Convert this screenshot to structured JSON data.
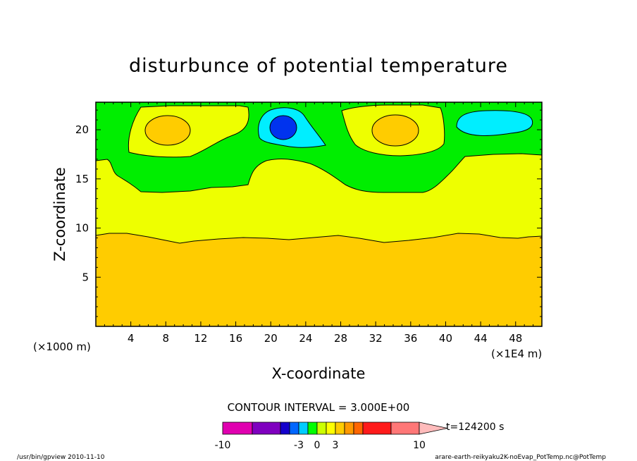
{
  "chart_data": {
    "type": "heatmap",
    "title": "disturbunce of potential temperature",
    "xlabel": "X-coordinate",
    "ylabel": "Z-coordinate",
    "x_unit_left": "(×1000 m)",
    "x_unit_right": "(×1E4 m)",
    "x_ticks": [
      "4",
      "8",
      "12",
      "16",
      "20",
      "24",
      "28",
      "32",
      "36",
      "40",
      "44",
      "48"
    ],
    "y_ticks": [
      "5",
      "10",
      "15",
      "20"
    ],
    "xlim": [
      0,
      51
    ],
    "ylim": [
      0,
      22.8
    ],
    "contour_interval_label": "CONTOUR INTERVAL = 3.000E+00",
    "time_label": "t=124200 s",
    "colorbar": {
      "tick_labels": [
        "-10",
        "-3",
        "0",
        "3",
        "10"
      ],
      "colors": [
        "#e000b0",
        "#7f00bf",
        "#1400cc",
        "#0066ff",
        "#00ccff",
        "#00ff00",
        "#ccff00",
        "#ffff00",
        "#ffcc00",
        "#ff9900",
        "#ff6600",
        "#ff1a1a",
        "#ff7777",
        "#ffbbbb"
      ]
    },
    "field_colors": {
      "le_9_approx": "#ffcc00",
      "band_9_16": "#eeff00",
      "band_16_22": "#00ee00",
      "warm_cores": "#ffcc00",
      "cold_halo": "#00eeff",
      "cold_core": "#0033ee"
    }
  },
  "footer": {
    "left": "/usr/bin/gpview   2010-11-10",
    "right": "arare-earth-reikyaku2K-noEvap_PotTemp.nc@PotTemp"
  }
}
